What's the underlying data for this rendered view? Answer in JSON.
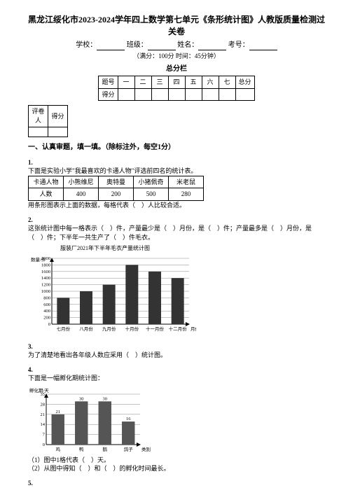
{
  "header": {
    "title": "黑龙江绥化市2023-2024学年四上数学第七单元《条形统计图》人教版质量检测过关卷",
    "school_label": "学校：",
    "class_label": "班级：",
    "name_label": "姓名：",
    "exam_no_label": "考号：",
    "full_marks": "（满分：100分 时间：45分钟）",
    "score_bar_label": "总分栏",
    "score_row_head": "题号",
    "score_cols": [
      "一",
      "二",
      "三",
      "四",
      "五",
      "六",
      "七",
      "总分"
    ],
    "score_row2_head": "得分",
    "reviewer": "评卷人",
    "reviewer_score": "得分"
  },
  "section1": {
    "heading": "一、认真审题，填一填。（除标注外，每空1分）"
  },
  "q1": {
    "num": "1.",
    "intro": "下面是实验小学\"我最喜欢的卡通人物\"评选前四名的统计表。",
    "table": {
      "head": [
        "卡通人物",
        "小熊维尼",
        "奥特曼",
        "小猪佩奇",
        "米老鼠"
      ],
      "row_label": "人数",
      "values": [
        "400",
        "200",
        "500",
        "280"
      ]
    },
    "tail": "用条形图表示上面的数据，每格代表（　）人比较合适。"
  },
  "q2": {
    "num": "2.",
    "text_parts": [
      "这张统计图中每一格表示（　）件，产量最少是（　）月份，是（　）件；产量最多是（　）月份，是（　）件；下半年一共生产了（　）件毛衣。"
    ],
    "chart": {
      "title": "服装厂2021年下半年毛衣产量统计图",
      "y_label": "数量/件",
      "x_label": "月份",
      "y_max": 2000,
      "y_step": 200,
      "y_ticks": [
        0,
        200,
        400,
        600,
        800,
        1000,
        1200,
        1400,
        1600,
        1800,
        2000
      ],
      "categories": [
        "七月份",
        "八月份",
        "九月份",
        "十月份",
        "十一月份",
        "十二月份"
      ],
      "values": [
        800,
        1000,
        1200,
        1800,
        1600,
        1400
      ],
      "bar_color": "#333333",
      "bg": "#ffffff",
      "grid_color": "#888888"
    }
  },
  "q3": {
    "num": "3.",
    "text": "为了清楚地看出各年级人数应采用（　）统计图。"
  },
  "q4": {
    "num": "4.",
    "intro": "下面是一幅孵化期统计图：",
    "chart": {
      "y_label": "孵化期/天",
      "x_label": "类别",
      "y_max": 35,
      "y_ticks": [
        0,
        7,
        14,
        21,
        28,
        35
      ],
      "y_step": 7,
      "categories": [
        "鸡",
        "鸭",
        "鹅",
        "鸽子"
      ],
      "values": [
        21,
        30,
        30,
        16
      ],
      "show_values": true,
      "bar_color": "#555555",
      "grid_color": "#888888"
    },
    "sub1": "（1）图中1格代表（　）天。",
    "sub2": "（2）从图中得知（　）和（　）的孵化时间最长。"
  },
  "q5": {
    "num": "5."
  }
}
